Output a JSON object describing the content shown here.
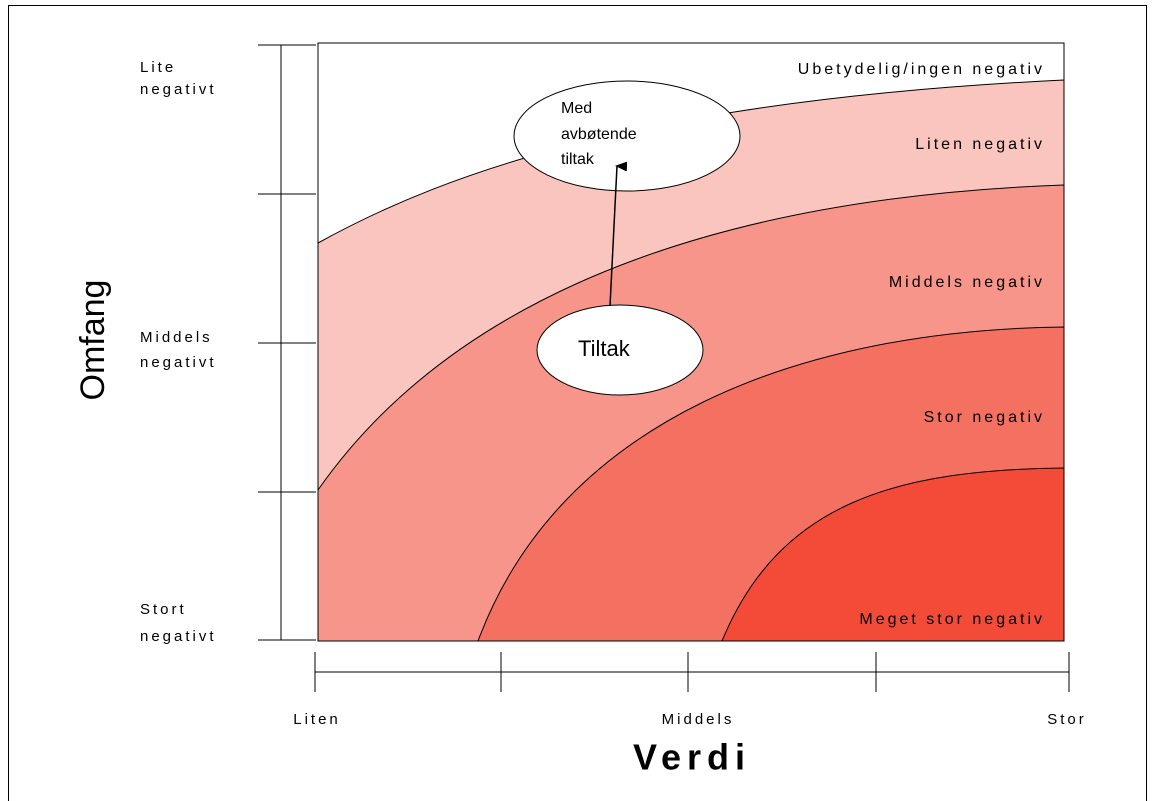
{
  "zones": [
    "Ubetydelig/ingen negativ",
    "Liten negativ",
    "Middels negativ",
    "Stor negativ",
    "Meget stor negativ"
  ],
  "y_axis": {
    "title": "Omfang",
    "labels": [
      [
        "Lite",
        "negativt"
      ],
      [
        "Middels",
        "negativt"
      ],
      [
        "Stort",
        "negativt"
      ]
    ]
  },
  "x_axis": {
    "title": "Verdi",
    "labels": [
      "Liten",
      "Middels",
      "Stor"
    ]
  },
  "ellipses": {
    "mitigated": [
      "Med",
      "avbøtende",
      "tiltak"
    ],
    "measure": "Tiltak"
  }
}
